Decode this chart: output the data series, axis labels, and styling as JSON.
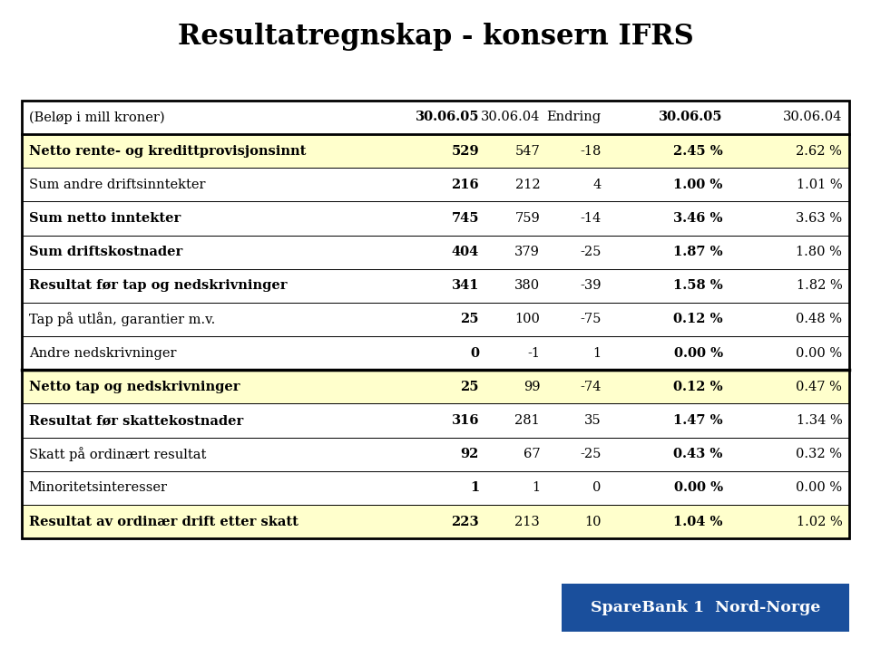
{
  "title": "Resultatregnskap - konsern IFRS",
  "header": [
    "(Beløp i mill kroner)",
    "30.06.05",
    "30.06.04",
    "Endring",
    "30.06.05",
    "30.06.04"
  ],
  "rows": [
    {
      "label": "Netto rente- og kredittprovisjonsinnt",
      "v1": "529",
      "v2": "547",
      "v3": "-18",
      "p1": "2.45 %",
      "p2": "2.62 %",
      "bold": true,
      "highlight": true
    },
    {
      "label": "Sum andre driftsinntekter",
      "v1": "216",
      "v2": "212",
      "v3": "4",
      "p1": "1.00 %",
      "p2": "1.01 %",
      "bold": false,
      "highlight": false
    },
    {
      "label": "Sum netto inntekter",
      "v1": "745",
      "v2": "759",
      "v3": "-14",
      "p1": "3.46 %",
      "p2": "3.63 %",
      "bold": true,
      "highlight": false
    },
    {
      "label": "Sum driftskostnader",
      "v1": "404",
      "v2": "379",
      "v3": "-25",
      "p1": "1.87 %",
      "p2": "1.80 %",
      "bold": true,
      "highlight": false
    },
    {
      "label": "Resultat før tap og nedskrivninger",
      "v1": "341",
      "v2": "380",
      "v3": "-39",
      "p1": "1.58 %",
      "p2": "1.82 %",
      "bold": true,
      "highlight": false
    },
    {
      "label": "Tap på utlån, garantier m.v.",
      "v1": "25",
      "v2": "100",
      "v3": "-75",
      "p1": "0.12 %",
      "p2": "0.48 %",
      "bold": false,
      "highlight": false
    },
    {
      "label": "Andre nedskrivninger",
      "v1": "0",
      "v2": "-1",
      "v3": "1",
      "p1": "0.00 %",
      "p2": "0.00 %",
      "bold": false,
      "highlight": false
    },
    {
      "label": "Netto tap og nedskrivninger",
      "v1": "25",
      "v2": "99",
      "v3": "-74",
      "p1": "0.12 %",
      "p2": "0.47 %",
      "bold": true,
      "highlight": true,
      "thick_top": true
    },
    {
      "label": "Resultat før skattekostnader",
      "v1": "316",
      "v2": "281",
      "v3": "35",
      "p1": "1.47 %",
      "p2": "1.34 %",
      "bold": true,
      "highlight": false
    },
    {
      "label": "Skatt på ordinært resultat",
      "v1": "92",
      "v2": "67",
      "v3": "-25",
      "p1": "0.43 %",
      "p2": "0.32 %",
      "bold": false,
      "highlight": false
    },
    {
      "label": "Minoritetsinteresser",
      "v1": "1",
      "v2": "1",
      "v3": "0",
      "p1": "0.00 %",
      "p2": "0.00 %",
      "bold": false,
      "highlight": false
    },
    {
      "label": "Resultat av ordinær drift etter skatt",
      "v1": "223",
      "v2": "213",
      "v3": "10",
      "p1": "1.04 %",
      "p2": "1.02 %",
      "bold": true,
      "highlight": true
    }
  ],
  "highlight_color": "#ffffcc",
  "background_color": "#ffffff",
  "border_color": "#000000",
  "title_color": "#000000",
  "logo_bg_color": "#1a4f9c",
  "logo_text": "SpareBank 1  Nord-Norge",
  "title_fontsize": 22,
  "body_fontsize": 10.5
}
